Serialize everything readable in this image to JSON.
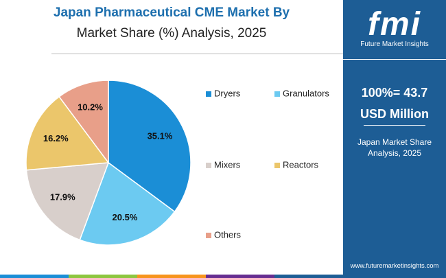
{
  "chart_data": {
    "type": "pie",
    "title": "Japan Pharmaceutical CME Market By",
    "subtitle": "Market Share (%) Analysis, 2025",
    "categories": [
      "Dryers",
      "Granulators",
      "Mixers",
      "Reactors",
      "Others"
    ],
    "values": [
      35.1,
      20.5,
      17.9,
      16.2,
      10.2
    ],
    "value_labels": [
      "35.1%",
      "20.5%",
      "17.9%",
      "16.2%",
      "10.2%"
    ],
    "colors": [
      "#1b8ed6",
      "#6ccaf1",
      "#d8cfcb",
      "#ebc66b",
      "#e89f89"
    ]
  },
  "sidebar": {
    "logo": "fmi",
    "brand": "Future Market Insights",
    "total": "100%= 43.7",
    "unit": "USD Million",
    "caption": "Japan Market Share Analysis, 2025",
    "website": "www.futuremarketinsights.com"
  }
}
